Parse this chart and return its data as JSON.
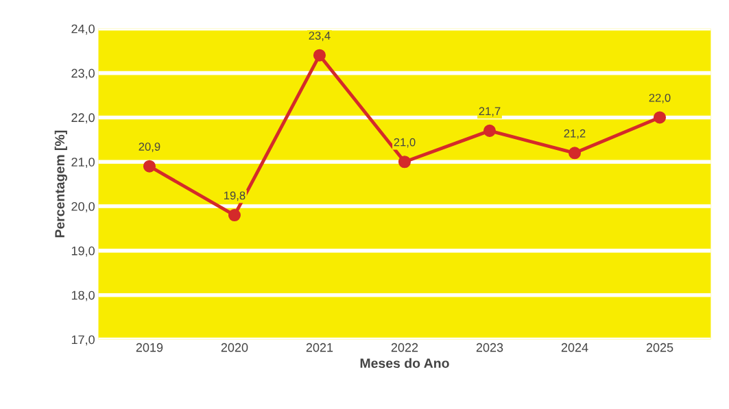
{
  "chart_data": {
    "type": "line",
    "xlabel": "Meses do Ano",
    "ylabel": "Percentagem [%]",
    "categories": [
      "2019",
      "2020",
      "2021",
      "2022",
      "2023",
      "2024",
      "2025"
    ],
    "series": [
      {
        "color": "#d42a2a",
        "values": [
          20.9,
          19.8,
          23.4,
          21.0,
          21.7,
          21.2,
          22.0
        ],
        "value_labels": [
          "20,9",
          "19,8",
          "23,4",
          "21,0",
          "21,7",
          "21,2",
          "22,0"
        ]
      }
    ],
    "ylim": [
      17,
      24
    ],
    "yticks": [
      {
        "value": 17,
        "label": "17,0"
      },
      {
        "value": 18,
        "label": "18,0"
      },
      {
        "value": 19,
        "label": "19,0"
      },
      {
        "value": 20,
        "label": "20,0"
      },
      {
        "value": 21,
        "label": "21,0"
      },
      {
        "value": 22,
        "label": "22,0"
      },
      {
        "value": 23,
        "label": "23,0"
      },
      {
        "value": 24,
        "label": "24,0"
      }
    ],
    "grid": "y",
    "marker": "circle",
    "line_style": "solid",
    "legend": false
  }
}
